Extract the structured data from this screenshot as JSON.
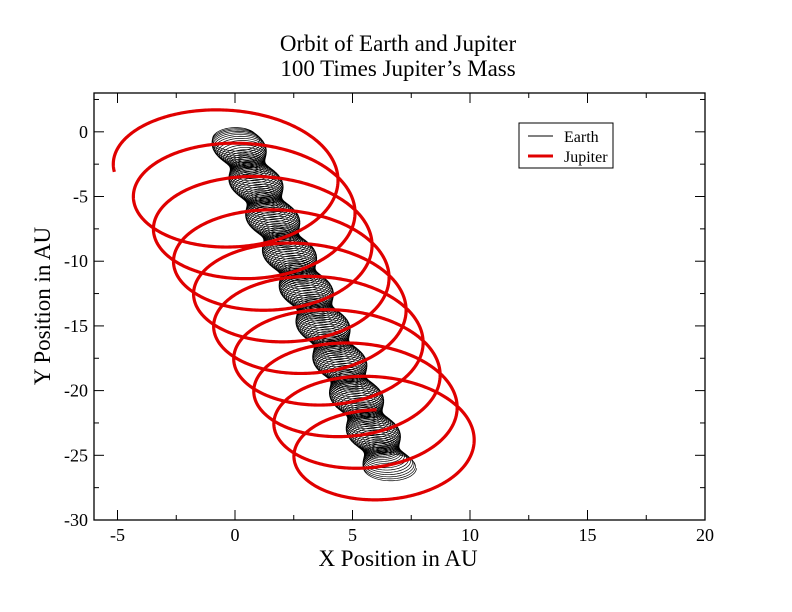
{
  "chart_data": {
    "type": "line",
    "title": "Orbit of Earth and Jupiter",
    "subtitle": "100 Times Jupiter’s Mass",
    "xlabel": "X Position in AU",
    "ylabel": "Y Position in AU",
    "xlim": [
      -6,
      20
    ],
    "ylim": [
      -30,
      3
    ],
    "xticks": [
      -5,
      0,
      5,
      10,
      15,
      20
    ],
    "yticks": [
      0,
      -5,
      -10,
      -15,
      -20,
      -25,
      -30
    ],
    "xtick_labels": [
      "-5",
      "0",
      "5",
      "10",
      "15",
      "20"
    ],
    "ytick_labels": [
      "0",
      "-5",
      "-10",
      "-15",
      "-20",
      "-25",
      "-30"
    ],
    "grid": false,
    "legend_position": "top-right",
    "series": [
      {
        "name": "Earth",
        "color": "#000000",
        "description_params": {
          "center_start": [
            0.0,
            -0.5
          ],
          "center_end": [
            6.6,
            -26.0
          ],
          "radius_x": 0.95,
          "radius_y": 0.85,
          "loops": 190
        }
      },
      {
        "name": "Jupiter",
        "color": "#e00000",
        "description_params": {
          "start": [
            -5.2,
            -1.5
          ],
          "end": [
            2.6,
            -25.0
          ],
          "center_start": [
            -0.6,
            -2.3
          ],
          "center_end": [
            6.7,
            -25.5
          ],
          "radius_start": 4.6,
          "radius_end": 4.0,
          "radius_y_scale": 1.02,
          "loops": 9.25
        }
      }
    ]
  }
}
